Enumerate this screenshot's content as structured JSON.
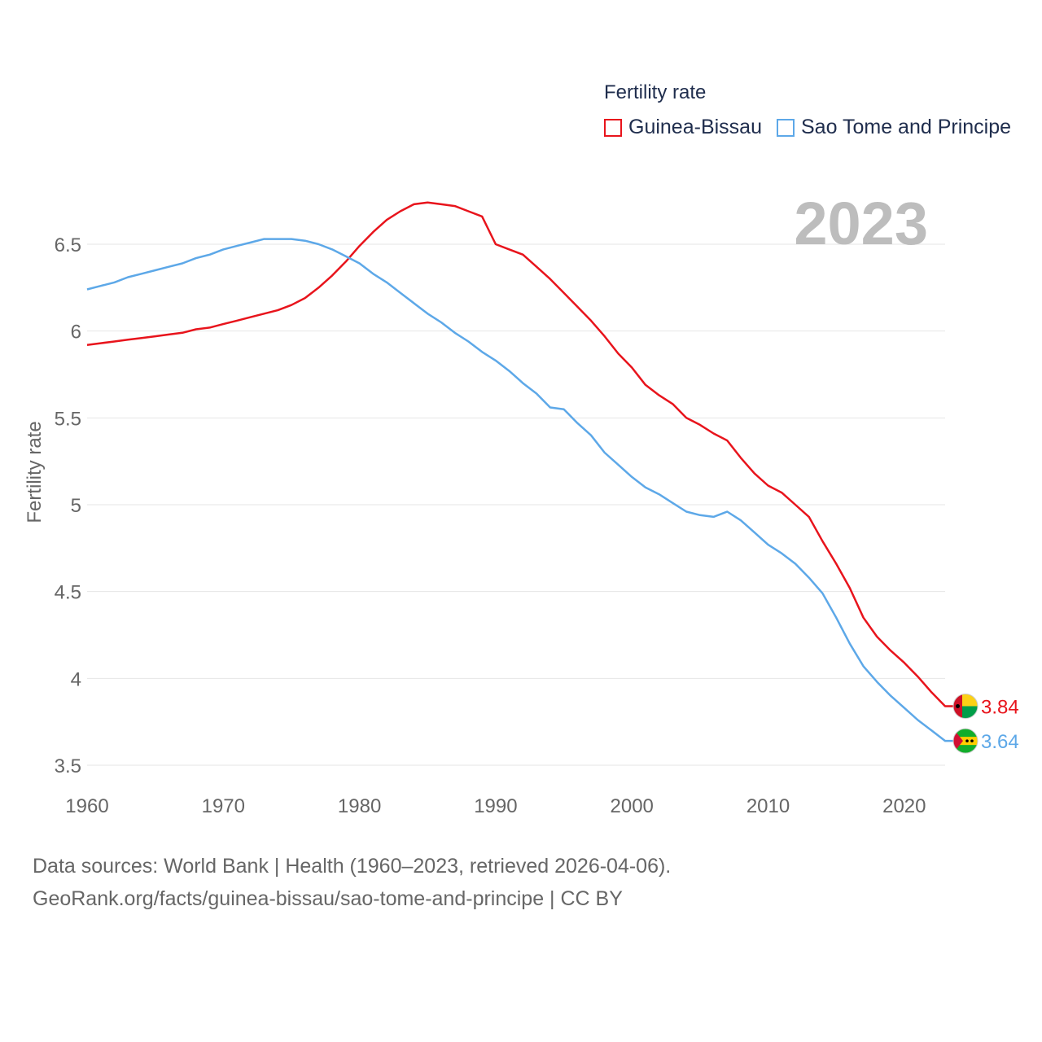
{
  "chart_data": {
    "type": "line",
    "title": "Fertility rate",
    "ylabel": "Fertility rate",
    "xlabel": "",
    "xlim": [
      1960,
      2023
    ],
    "ylim": [
      3.5,
      6.75
    ],
    "x_ticks": [
      1960,
      1970,
      1980,
      1990,
      2000,
      2010,
      2020
    ],
    "y_ticks": [
      3.5,
      4,
      4.5,
      5,
      5.5,
      6,
      6.5
    ],
    "y_tick_labels": [
      "3.5",
      "4",
      "4.5",
      "5",
      "5.5",
      "6",
      "6.5"
    ],
    "year_display": "2023",
    "grid": true,
    "legend_position": "top-right",
    "x": [
      1960,
      1961,
      1962,
      1963,
      1964,
      1965,
      1966,
      1967,
      1968,
      1969,
      1970,
      1971,
      1972,
      1973,
      1974,
      1975,
      1976,
      1977,
      1978,
      1979,
      1980,
      1981,
      1982,
      1983,
      1984,
      1985,
      1986,
      1987,
      1988,
      1989,
      1990,
      1991,
      1992,
      1993,
      1994,
      1995,
      1996,
      1997,
      1998,
      1999,
      2000,
      2001,
      2002,
      2003,
      2004,
      2005,
      2006,
      2007,
      2008,
      2009,
      2010,
      2011,
      2012,
      2013,
      2014,
      2015,
      2016,
      2017,
      2018,
      2019,
      2020,
      2021,
      2022,
      2023
    ],
    "series": [
      {
        "name": "Guinea-Bissau",
        "color": "#e8141c",
        "end_label": "3.84",
        "values": [
          5.92,
          5.93,
          5.94,
          5.95,
          5.96,
          5.97,
          5.98,
          5.99,
          6.01,
          6.02,
          6.04,
          6.06,
          6.08,
          6.1,
          6.12,
          6.15,
          6.19,
          6.25,
          6.32,
          6.4,
          6.49,
          6.57,
          6.64,
          6.69,
          6.73,
          6.74,
          6.73,
          6.72,
          6.69,
          6.66,
          6.5,
          6.47,
          6.44,
          6.37,
          6.3,
          6.22,
          6.14,
          6.06,
          5.97,
          5.87,
          5.79,
          5.69,
          5.63,
          5.58,
          5.5,
          5.46,
          5.41,
          5.37,
          5.27,
          5.18,
          5.11,
          5.07,
          5.0,
          4.93,
          4.79,
          4.66,
          4.52,
          4.35,
          4.24,
          4.16,
          4.09,
          4.01,
          3.92,
          3.84
        ]
      },
      {
        "name": "Sao Tome and Principe",
        "color": "#5da8e8",
        "end_label": "3.64",
        "values": [
          6.24,
          6.26,
          6.28,
          6.31,
          6.33,
          6.35,
          6.37,
          6.39,
          6.42,
          6.44,
          6.47,
          6.49,
          6.51,
          6.53,
          6.53,
          6.53,
          6.52,
          6.5,
          6.47,
          6.43,
          6.39,
          6.33,
          6.28,
          6.22,
          6.16,
          6.1,
          6.05,
          5.99,
          5.94,
          5.88,
          5.83,
          5.77,
          5.7,
          5.64,
          5.56,
          5.55,
          5.47,
          5.4,
          5.3,
          5.23,
          5.16,
          5.1,
          5.06,
          5.01,
          4.96,
          4.94,
          4.93,
          4.96,
          4.91,
          4.84,
          4.77,
          4.72,
          4.66,
          4.58,
          4.49,
          4.35,
          4.2,
          4.07,
          3.98,
          3.9,
          3.83,
          3.76,
          3.7,
          3.64
        ]
      }
    ]
  },
  "legend": {
    "title": "Fertility rate",
    "items": [
      {
        "label": "Guinea-Bissau",
        "color": "#e8141c"
      },
      {
        "label": "Sao Tome and Principe",
        "color": "#5da8e8"
      }
    ]
  },
  "footer": {
    "line1": "Data sources: World Bank | Health (1960–2023, retrieved 2026-04-06).",
    "line2": "GeoRank.org/facts/guinea-bissau/sao-tome-and-principe | CC BY"
  },
  "flags": {
    "guinea_bissau": {
      "name": "guinea-bissau-flag-icon",
      "colors": [
        "#ce1126",
        "#fcd116",
        "#009e49",
        "#000000"
      ]
    },
    "sao_tome": {
      "name": "sao-tome-and-principe-flag-icon",
      "colors": [
        "#d21034",
        "#12ad2b",
        "#ffce00",
        "#000000"
      ]
    }
  }
}
